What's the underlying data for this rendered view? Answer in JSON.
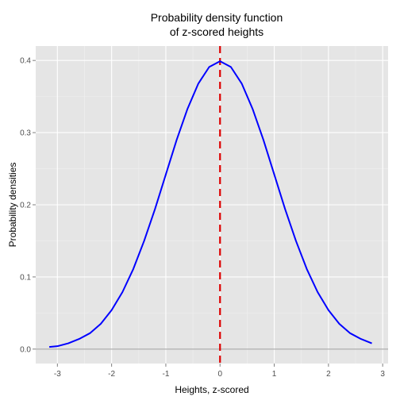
{
  "chart_data": {
    "type": "line",
    "title_lines": [
      "Probability density function",
      "of z-scored heights"
    ],
    "xlabel": "Heights, z-scored",
    "ylabel": "Probability densities",
    "xlim": [
      -3.4,
      3.1
    ],
    "ylim": [
      -0.02,
      0.42
    ],
    "x_ticks": [
      -3,
      -2,
      -1,
      0,
      1,
      2,
      3
    ],
    "x_tick_labels": [
      "-3",
      "-2",
      "-1",
      "0",
      "1",
      "2",
      "3"
    ],
    "y_ticks": [
      0.0,
      0.1,
      0.2,
      0.3,
      0.4
    ],
    "y_tick_labels": [
      "0.0",
      "0.1",
      "0.2",
      "0.3",
      "0.4"
    ],
    "grid": true,
    "series": [
      {
        "x": [
          -3.15,
          -3.0,
          -2.8,
          -2.6,
          -2.4,
          -2.2,
          -2.0,
          -1.8,
          -1.6,
          -1.4,
          -1.2,
          -1.0,
          -0.8,
          -0.6,
          -0.4,
          -0.2,
          0.0,
          0.2,
          0.4,
          0.6,
          0.8,
          1.0,
          1.2,
          1.4,
          1.6,
          1.8,
          2.0,
          2.2,
          2.4,
          2.6,
          2.8
        ],
        "y": [
          0.003,
          0.004,
          0.008,
          0.014,
          0.022,
          0.035,
          0.054,
          0.079,
          0.111,
          0.15,
          0.194,
          0.242,
          0.29,
          0.333,
          0.368,
          0.391,
          0.399,
          0.391,
          0.368,
          0.333,
          0.29,
          0.242,
          0.194,
          0.15,
          0.111,
          0.079,
          0.054,
          0.035,
          0.022,
          0.014,
          0.008
        ]
      }
    ],
    "vline": {
      "x": 0
    },
    "hline": {
      "y": 0
    },
    "colors": {
      "panel_background": "#e5e5e5",
      "grid_major": "#ffffff",
      "grid_minor": "#f0f0f0",
      "curve": "#0000ff",
      "vline": "#dd0000",
      "hline": "#9a9a9a",
      "tick_text": "#4d4d4d",
      "label_text": "#000000"
    }
  }
}
